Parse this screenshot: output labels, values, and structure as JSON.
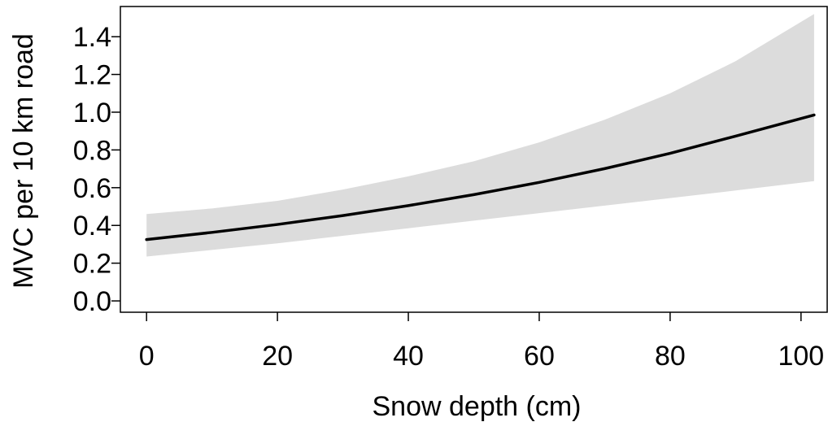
{
  "chart_data": {
    "type": "line",
    "title": "",
    "xlabel": "Snow depth (cm)",
    "ylabel": "MVC per 10 km road",
    "xlim": [
      -4,
      104
    ],
    "ylim": [
      -0.06,
      1.56
    ],
    "xticks": [
      0,
      20,
      40,
      60,
      80,
      100
    ],
    "yticks": [
      0.0,
      0.2,
      0.4,
      0.6,
      0.8,
      1.0,
      1.2,
      1.4
    ],
    "xtick_labels": [
      "0",
      "20",
      "40",
      "60",
      "80",
      "100"
    ],
    "ytick_labels": [
      "0.0",
      "0.2",
      "0.4",
      "0.6",
      "0.8",
      "1.0",
      "1.2",
      "1.4"
    ],
    "grid": false,
    "legend": "none",
    "series": [
      {
        "type": "line",
        "color": "#000000",
        "x": [
          0,
          10,
          20,
          30,
          40,
          50,
          60,
          70,
          80,
          90,
          102
        ],
        "y": [
          0.325,
          0.363,
          0.405,
          0.452,
          0.505,
          0.563,
          0.628,
          0.701,
          0.782,
          0.873,
          0.985
        ]
      },
      {
        "type": "confidence_band",
        "color": "#dcdcdc",
        "x": [
          0,
          10,
          20,
          30,
          40,
          50,
          60,
          70,
          80,
          90,
          102
        ],
        "lower": [
          0.235,
          0.27,
          0.305,
          0.345,
          0.385,
          0.425,
          0.465,
          0.505,
          0.545,
          0.585,
          0.635
        ],
        "upper": [
          0.46,
          0.49,
          0.53,
          0.59,
          0.66,
          0.74,
          0.84,
          0.96,
          1.1,
          1.27,
          1.52
        ]
      }
    ]
  }
}
